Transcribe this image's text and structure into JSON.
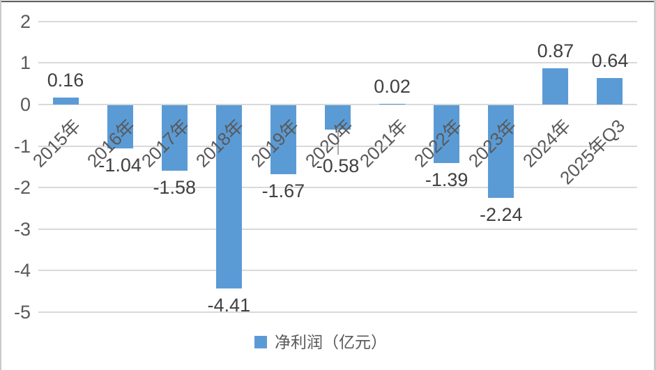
{
  "chart_data": {
    "type": "bar",
    "title": "",
    "categories": [
      "2015年",
      "2016年",
      "2017年",
      "2018年",
      "2019年",
      "2020年",
      "2021年",
      "2022年",
      "2023年",
      "2024年",
      "2025年Q3"
    ],
    "series": [
      {
        "name": "净利润（亿元）",
        "values": [
          0.16,
          -1.04,
          -1.58,
          -4.41,
          -1.67,
          -0.58,
          0.02,
          -1.39,
          -2.24,
          0.87,
          0.64
        ]
      }
    ],
    "data_labels": [
      "0.16",
      "-1.04",
      "-1.58",
      "-4.41",
      "-1.67",
      "-0.58",
      "0.02",
      "-1.39",
      "-2.24",
      "0.87",
      "0.64"
    ],
    "xlabel": "",
    "ylabel": "",
    "y_ticks": [
      2,
      1,
      0,
      -1,
      -2,
      -3,
      -4,
      -5
    ],
    "y_tick_labels": [
      "2",
      "1",
      "0",
      "-1",
      "-2",
      "-3",
      "-4",
      "-5"
    ],
    "ylim": [
      -5,
      2
    ],
    "grid": true,
    "legend_label": "净利润（亿元）",
    "legend_position": "bottom-center",
    "bar_color": "#5b9bd5",
    "gridline_color": "#d9d9d9",
    "axis_text_color": "#595959",
    "data_label_color": "#404040",
    "annotations": [
      {
        "category": "2020年",
        "category_index": 5,
        "type": "moved-data-label-with-leader-line",
        "label": "-0.58",
        "label_dy": 28
      }
    ]
  }
}
